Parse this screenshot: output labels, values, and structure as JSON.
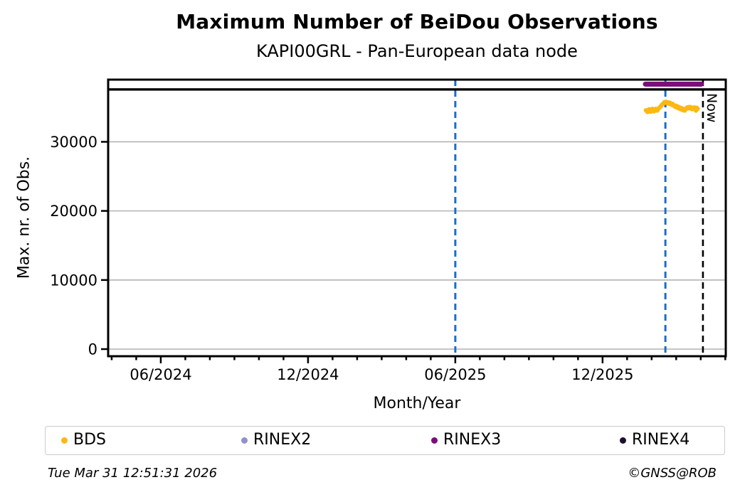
{
  "footer": {
    "timestamp": "Tue Mar 31 12:51:31 2026",
    "copyright": "©GNSS@ROB"
  },
  "chart_data": {
    "type": "scatter",
    "title": "Maximum Number of BeiDou Observations",
    "subtitle": "KAPI00GRL - Pan-European data node",
    "xlabel": "Month/Year",
    "ylabel": "Max. nr. of Obs.",
    "xlim_decimal_year": [
      2024.238,
      2026.335
    ],
    "ylim": [
      -1030,
      39000
    ],
    "yticks": [
      0,
      10000,
      20000,
      30000
    ],
    "xticks": [
      {
        "value": 2024.4167,
        "label": "06/2024"
      },
      {
        "value": 2024.9167,
        "label": "12/2024"
      },
      {
        "value": 2025.4167,
        "label": "06/2025"
      },
      {
        "value": 2025.9167,
        "label": "12/2025"
      }
    ],
    "minor_xticks": "monthly",
    "grid": "horizontal-major",
    "grid_color": "#b3b3b3",
    "axis_color": "#000000",
    "reference_lines": {
      "max_obs_line": {
        "y": 37580,
        "color": "#000000",
        "style": "solid",
        "span": "full-width"
      },
      "event_lines_dashed_blue": {
        "x": [
          2025.4167,
          2026.13
        ],
        "color": "#1b6ec2",
        "style": "dashed"
      },
      "now_line": {
        "x": 2026.2575,
        "label": "Now",
        "color": "#000000",
        "style": "dashed"
      }
    },
    "series": [
      {
        "name": "BDS",
        "color": "#fcb813",
        "kind": "scatter-daily",
        "x_start_decimal_year": 2026.064,
        "x_step_years": 0.00274,
        "values": [
          34570,
          34460,
          34310,
          34570,
          34720,
          34515,
          34360,
          34570,
          34770,
          34620,
          34410,
          34570,
          34770,
          34670,
          34515,
          34720,
          34880,
          34980,
          35080,
          35240,
          35390,
          35490,
          35600,
          35750,
          35650,
          35800,
          35700,
          35550,
          35700,
          35490,
          35650,
          35440,
          35340,
          35490,
          35340,
          35190,
          35080,
          35240,
          34980,
          35130,
          34880,
          35030,
          34770,
          34930,
          34670,
          34830,
          34570,
          34720,
          34520,
          34670,
          34830,
          34980,
          34830,
          35030,
          34880,
          35030,
          34880,
          34720,
          34930,
          34770,
          34980,
          34830,
          34520,
          34930,
          34770
        ]
      },
      {
        "name": "RINEX2",
        "color": "#9191cf",
        "kind": "scatter-daily",
        "values": []
      },
      {
        "name": "RINEX3",
        "color": "#7c0d7c",
        "kind": "line-segment",
        "segment": {
          "x_start": 2026.062,
          "x_end": 2026.252,
          "y": 38350
        }
      },
      {
        "name": "RINEX4",
        "color": "#1e0e2e",
        "kind": "scatter-daily",
        "values": []
      }
    ],
    "legend": {
      "position": "bottom",
      "entries": [
        "BDS",
        "RINEX2",
        "RINEX3",
        "RINEX4"
      ]
    }
  }
}
